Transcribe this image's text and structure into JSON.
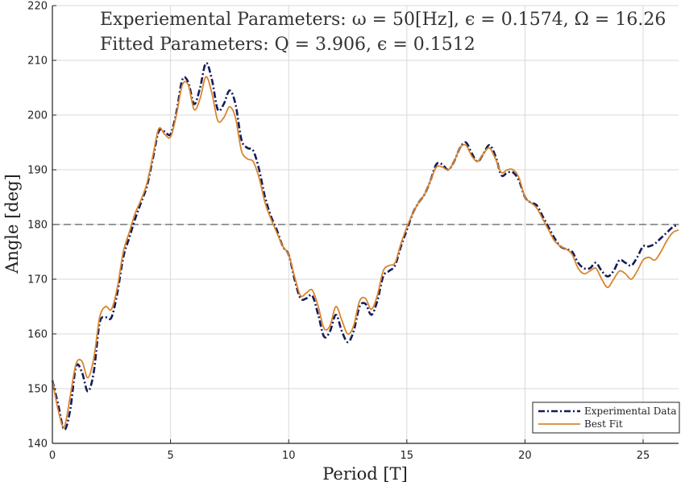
{
  "chart_data": {
    "type": "line",
    "title": "",
    "annotations": [
      "Experiemental Parameters: ω = 50[Hz], ϵ = 0.1574, Ω = 16.26",
      "Fitted Parameters: Q = 3.906, ϵ = 0.1512"
    ],
    "xlabel": "Period [T]",
    "ylabel": "Angle [deg]",
    "xlim": [
      0,
      26.5
    ],
    "ylim": [
      140,
      220
    ],
    "xticks": [
      0,
      5,
      10,
      15,
      20,
      25
    ],
    "yticks": [
      140,
      150,
      160,
      170,
      180,
      190,
      200,
      210,
      220
    ],
    "grid": true,
    "reference_line": {
      "y": 180,
      "style": "dashed"
    },
    "legend": {
      "position": "bottom-right"
    },
    "series": [
      {
        "name": "Experimental Data",
        "color": "#141c5a",
        "style": "dash-dot",
        "x": [
          0,
          0.25,
          0.5,
          0.75,
          1.0,
          1.25,
          1.5,
          1.75,
          2.0,
          2.25,
          2.5,
          2.75,
          3.0,
          3.25,
          3.5,
          3.75,
          4.0,
          4.25,
          4.5,
          4.75,
          5.0,
          5.25,
          5.5,
          5.75,
          6.0,
          6.25,
          6.5,
          6.75,
          7.0,
          7.25,
          7.5,
          7.75,
          8.0,
          8.25,
          8.5,
          8.75,
          9.0,
          9.25,
          9.5,
          9.75,
          10.0,
          10.25,
          10.5,
          10.75,
          11.0,
          11.25,
          11.5,
          11.75,
          12.0,
          12.25,
          12.5,
          12.75,
          13.0,
          13.25,
          13.5,
          13.75,
          14.0,
          14.25,
          14.5,
          14.75,
          15.0,
          15.25,
          15.5,
          15.75,
          16.0,
          16.25,
          16.5,
          16.75,
          17.0,
          17.25,
          17.5,
          17.75,
          18.0,
          18.25,
          18.5,
          18.75,
          19.0,
          19.25,
          19.5,
          19.75,
          20.0,
          20.25,
          20.5,
          20.75,
          21.0,
          21.25,
          21.5,
          21.75,
          22.0,
          22.25,
          22.5,
          22.75,
          23.0,
          23.25,
          23.5,
          23.75,
          24.0,
          24.25,
          24.5,
          24.75,
          25.0,
          25.25,
          25.5,
          25.75,
          26.0,
          26.25,
          26.5
        ],
        "y": [
          151.5,
          147.0,
          142.5,
          146.0,
          154.0,
          153.0,
          149.5,
          153.0,
          162.0,
          163.0,
          163.0,
          167.5,
          174.0,
          177.5,
          181.0,
          184.0,
          187.0,
          192.0,
          197.0,
          197.0,
          196.5,
          200.5,
          206.5,
          206.0,
          202.0,
          205.0,
          209.5,
          206.5,
          201.0,
          202.0,
          204.5,
          202.0,
          195.5,
          194.0,
          193.5,
          190.0,
          185.0,
          181.5,
          179.0,
          176.0,
          174.5,
          170.0,
          166.5,
          166.5,
          167.0,
          163.5,
          159.5,
          160.5,
          163.5,
          160.5,
          158.5,
          160.5,
          165.0,
          165.5,
          163.5,
          166.0,
          170.5,
          171.5,
          172.5,
          176.0,
          179.0,
          182.0,
          184.0,
          185.5,
          188.0,
          191.0,
          191.0,
          190.0,
          191.5,
          194.0,
          195.0,
          193.0,
          191.5,
          193.0,
          194.5,
          192.5,
          189.0,
          189.5,
          189.5,
          188.0,
          185.0,
          184.0,
          183.5,
          181.5,
          179.5,
          177.5,
          176.0,
          175.5,
          175.0,
          173.0,
          172.0,
          172.0,
          173.0,
          171.5,
          170.5,
          171.5,
          173.5,
          173.0,
          172.5,
          174.0,
          176.0,
          176.0,
          176.5,
          177.5,
          178.5,
          179.5,
          180.0
        ]
      },
      {
        "name": "Best Fit",
        "color": "#d9852e",
        "style": "solid",
        "x": [
          0,
          0.25,
          0.5,
          0.75,
          1.0,
          1.25,
          1.5,
          1.75,
          2.0,
          2.25,
          2.5,
          2.75,
          3.0,
          3.25,
          3.5,
          3.75,
          4.0,
          4.25,
          4.5,
          4.75,
          5.0,
          5.25,
          5.5,
          5.75,
          6.0,
          6.25,
          6.5,
          6.75,
          7.0,
          7.25,
          7.5,
          7.75,
          8.0,
          8.25,
          8.5,
          8.75,
          9.0,
          9.25,
          9.5,
          9.75,
          10.0,
          10.25,
          10.5,
          10.75,
          11.0,
          11.25,
          11.5,
          11.75,
          12.0,
          12.25,
          12.5,
          12.75,
          13.0,
          13.25,
          13.5,
          13.75,
          14.0,
          14.25,
          14.5,
          14.75,
          15.0,
          15.25,
          15.5,
          15.75,
          16.0,
          16.25,
          16.5,
          16.75,
          17.0,
          17.25,
          17.5,
          17.75,
          18.0,
          18.25,
          18.5,
          18.75,
          19.0,
          19.25,
          19.5,
          19.75,
          20.0,
          20.25,
          20.5,
          20.75,
          21.0,
          21.25,
          21.5,
          21.75,
          22.0,
          22.25,
          22.5,
          22.75,
          23.0,
          23.25,
          23.5,
          23.75,
          24.0,
          24.25,
          24.5,
          24.75,
          25.0,
          25.25,
          25.5,
          25.75,
          26.0,
          26.25,
          26.5
        ],
        "y": [
          151.5,
          146.0,
          143.0,
          148.5,
          154.5,
          155.0,
          152.0,
          155.5,
          163.0,
          165.0,
          164.5,
          168.5,
          175.0,
          178.5,
          182.0,
          184.5,
          187.5,
          192.5,
          197.5,
          196.5,
          196.0,
          200.0,
          205.5,
          205.5,
          201.0,
          203.0,
          207.0,
          204.0,
          199.0,
          199.5,
          201.5,
          199.5,
          193.5,
          192.0,
          191.5,
          188.5,
          184.0,
          181.0,
          178.5,
          176.0,
          174.5,
          170.5,
          167.0,
          167.5,
          168.0,
          165.0,
          161.0,
          161.5,
          165.0,
          162.5,
          160.0,
          161.5,
          166.0,
          166.5,
          164.5,
          167.0,
          171.5,
          172.5,
          173.0,
          176.5,
          179.5,
          182.0,
          184.0,
          185.5,
          188.0,
          190.5,
          190.5,
          190.0,
          191.5,
          194.0,
          194.5,
          192.5,
          191.5,
          193.0,
          194.0,
          192.0,
          189.5,
          190.0,
          190.0,
          188.5,
          185.0,
          184.0,
          183.0,
          181.0,
          179.0,
          177.0,
          176.0,
          175.5,
          174.5,
          172.0,
          171.0,
          171.5,
          172.0,
          170.0,
          168.5,
          170.0,
          171.5,
          171.0,
          170.0,
          171.5,
          173.5,
          174.0,
          173.5,
          175.0,
          177.0,
          178.5,
          179.0
        ]
      }
    ]
  }
}
